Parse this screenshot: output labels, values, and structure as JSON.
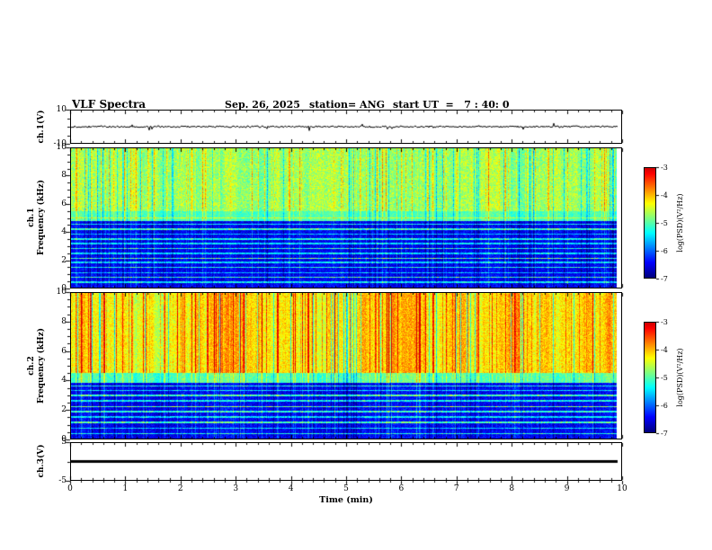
{
  "header": {
    "title": "VLF Spectra",
    "date": "Sep. 26, 2025",
    "station": "station= ANG",
    "start_ut": "start UT  =   7 : 40: 0"
  },
  "xaxis": {
    "label": "Time (min)",
    "min": 0,
    "max": 10,
    "major_ticks": [
      0,
      1,
      2,
      3,
      4,
      5,
      6,
      7,
      8,
      9,
      10
    ],
    "minor_step": 0.2
  },
  "colorbar": {
    "label": "log(PSD)(V²/Hz)",
    "ticks": [
      -3,
      -4,
      -5,
      -6,
      -7
    ],
    "vmin": -7,
    "vmax": -3,
    "colormap": "jet"
  },
  "chart_data": [
    {
      "id": "ch1_waveform",
      "type": "line",
      "ylabel": "ch.1(V)",
      "ylim": [
        -10,
        10
      ],
      "yticks": [
        {
          "v": 10,
          "t": "10"
        },
        {
          "v": -10,
          "t": "-10"
        }
      ],
      "yminor": [
        5,
        0,
        -5
      ],
      "xlim": [
        0,
        10
      ],
      "signal": {
        "baseline": 0,
        "noise_amp": 0.55,
        "spike_prob": 0.04,
        "spike_amp": 2.6,
        "color": "#000000",
        "line_width": 1
      },
      "seed": 424242
    },
    {
      "id": "ch1_spectrogram",
      "type": "heatmap",
      "ylabel_lines": [
        "ch.1",
        "Frequency (kHz)"
      ],
      "ylim": [
        0,
        10
      ],
      "yticks": [
        {
          "v": 0,
          "t": "0"
        },
        {
          "v": 2,
          "t": "2"
        },
        {
          "v": 4,
          "t": "4"
        },
        {
          "v": 6,
          "t": "6"
        },
        {
          "v": 8,
          "t": "8"
        },
        {
          "v": 10,
          "t": "10"
        }
      ],
      "xlim": [
        0,
        10
      ],
      "value_range": [
        -7,
        -3
      ],
      "bands": [
        {
          "f_min": 5.5,
          "f_max": 10.01,
          "base": -4.75,
          "noise": 0.35,
          "streak_gain": 0.75
        },
        {
          "f_min": 4.75,
          "f_max": 5.5,
          "base": -5.1,
          "noise": 0.2,
          "streak_gain": 0.55
        },
        {
          "f_min": -0.01,
          "f_max": 4.75,
          "base": -6.55,
          "noise": 0.25,
          "streak_gain": 0.4
        }
      ],
      "hlines": [
        {
          "f": 0.4,
          "gain": 1.1
        },
        {
          "f": 0.75,
          "gain": 1.4
        },
        {
          "f": 1.05,
          "gain": 0.9
        },
        {
          "f": 1.45,
          "gain": 1.2
        },
        {
          "f": 1.8,
          "gain": 1.0
        },
        {
          "f": 2.1,
          "gain": 1.5
        },
        {
          "f": 2.45,
          "gain": 1.0
        },
        {
          "f": 2.8,
          "gain": 1.3
        },
        {
          "f": 3.15,
          "gain": 1.0
        },
        {
          "f": 3.5,
          "gain": 1.2
        },
        {
          "f": 3.85,
          "gain": 0.9
        },
        {
          "f": 4.2,
          "gain": 1.4
        },
        {
          "f": 4.55,
          "gain": 1.1
        },
        {
          "f": 5.0,
          "gain": 0.6
        }
      ],
      "seed": 12345
    },
    {
      "id": "ch2_spectrogram",
      "type": "heatmap",
      "ylabel_lines": [
        "ch.2",
        "Frequency (kHz)"
      ],
      "ylim": [
        0,
        10
      ],
      "yticks": [
        {
          "v": 0,
          "t": "0"
        },
        {
          "v": 2,
          "t": "2"
        },
        {
          "v": 4,
          "t": "4"
        },
        {
          "v": 6,
          "t": "6"
        },
        {
          "v": 8,
          "t": "8"
        },
        {
          "v": 10,
          "t": "10"
        }
      ],
      "xlim": [
        0,
        10
      ],
      "value_range": [
        -7,
        -3
      ],
      "bands": [
        {
          "f_min": 4.5,
          "f_max": 10.01,
          "base": -4.15,
          "noise": 0.3,
          "streak_gain": 1.15
        },
        {
          "f_min": 3.8,
          "f_max": 4.5,
          "base": -5.0,
          "noise": 0.25,
          "streak_gain": 0.7
        },
        {
          "f_min": -0.01,
          "f_max": 3.8,
          "base": -6.5,
          "noise": 0.25,
          "streak_gain": 0.45
        }
      ],
      "hlines": [
        {
          "f": 0.35,
          "gain": 1.2
        },
        {
          "f": 0.7,
          "gain": 1.0
        },
        {
          "f": 1.1,
          "gain": 1.4
        },
        {
          "f": 1.5,
          "gain": 1.0
        },
        {
          "f": 1.85,
          "gain": 1.3
        },
        {
          "f": 2.2,
          "gain": 1.6
        },
        {
          "f": 2.6,
          "gain": 1.1
        },
        {
          "f": 2.95,
          "gain": 1.4
        },
        {
          "f": 3.3,
          "gain": 1.0
        },
        {
          "f": 3.6,
          "gain": 1.2
        }
      ],
      "seed": 67890
    },
    {
      "id": "ch3_waveform",
      "type": "line",
      "ylabel": "ch.3(V)",
      "ylim": [
        -5,
        5
      ],
      "yticks": [
        {
          "v": 5,
          "t": "5"
        },
        {
          "v": -5,
          "t": "-5"
        }
      ],
      "yminor": [
        0
      ],
      "xlim": [
        0,
        10
      ],
      "signal": {
        "baseline": 0,
        "noise_amp": 0,
        "spike_prob": 0,
        "spike_amp": 0,
        "color": "#000000",
        "line_width": 3
      },
      "seed": 777
    }
  ]
}
